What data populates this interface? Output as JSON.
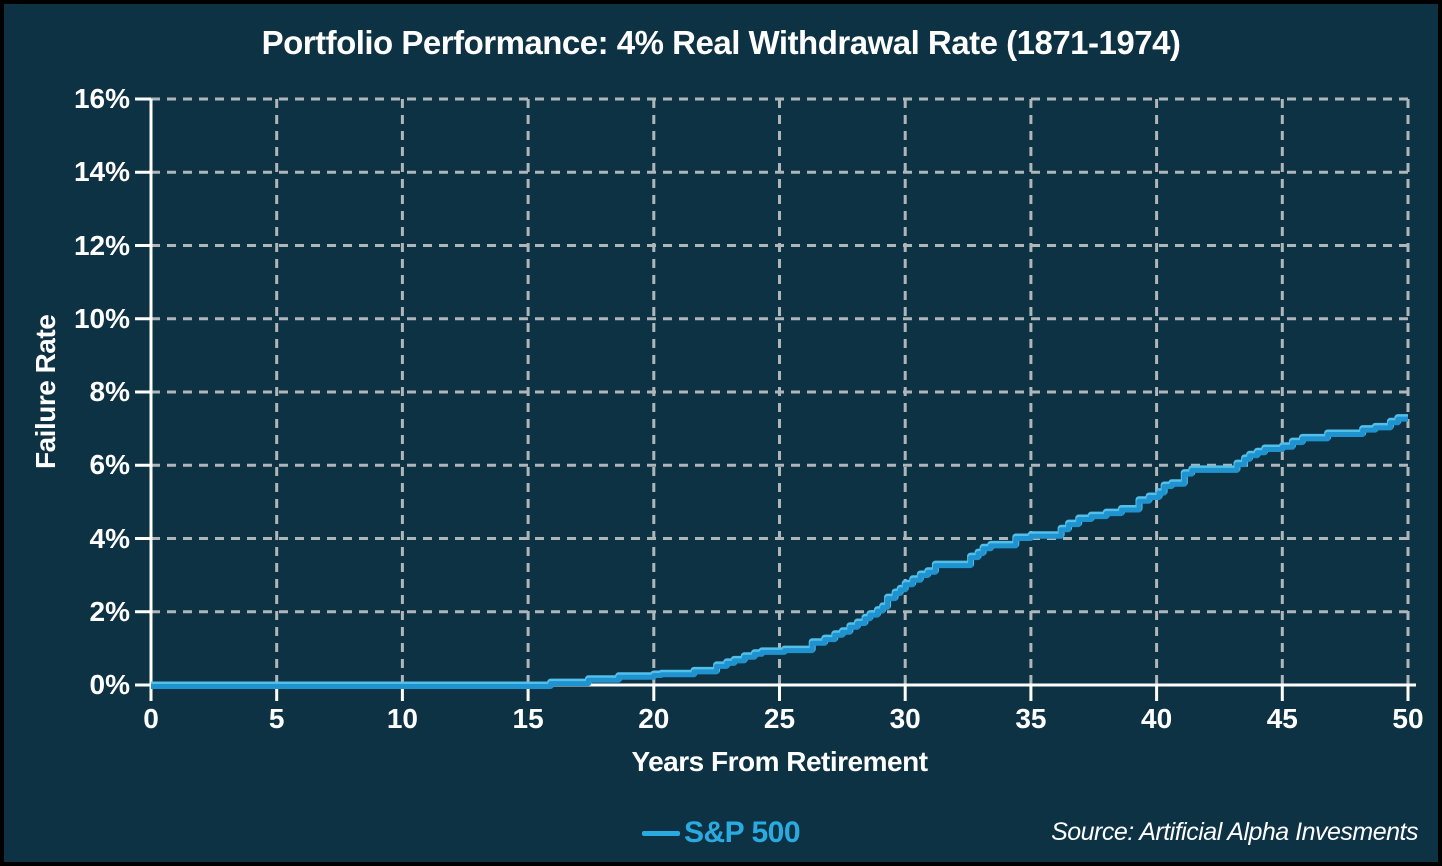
{
  "title": "Portfolio Performance: 4% Real Withdrawal Rate (1871-1974)",
  "axes": {
    "x_label": "Years From Retirement",
    "y_label": "Failure Rate"
  },
  "legend": {
    "label": "S&P 500"
  },
  "source_note": "Source: Artificial Alpha Invesments",
  "colors": {
    "background": "#0d3244",
    "frame_border": "#000000",
    "axis_line": "#ffffff",
    "gridline": "#aeb6ba",
    "text": "#ffffff",
    "series_line": "#1e93d0",
    "series_line_highlight": "#54c0ea",
    "legend_text": "#29abe2"
  },
  "chart_data": {
    "type": "line",
    "step": true,
    "title": "Portfolio Performance: 4% Real Withdrawal Rate (1871-1974)",
    "xlabel": "Years From Retirement",
    "ylabel": "Failure Rate",
    "xlim": [
      0,
      50
    ],
    "ylim": [
      0,
      16
    ],
    "x_ticks": [
      0,
      5,
      10,
      15,
      20,
      25,
      30,
      35,
      40,
      45,
      50
    ],
    "y_ticks": [
      0,
      2,
      4,
      6,
      8,
      10,
      12,
      14,
      16
    ],
    "y_tick_suffix": "%",
    "grid": "dashed",
    "legend_position": "bottom-center",
    "series": [
      {
        "name": "S&P 500",
        "color": "#29abe2",
        "points_note": "step function; [years_from_retirement, failure_rate_percent] at each level change",
        "points": [
          [
            0,
            0
          ],
          [
            15.9,
            0.08
          ],
          [
            17.4,
            0.17
          ],
          [
            18.6,
            0.25
          ],
          [
            20,
            0.3
          ],
          [
            20.3,
            0.32
          ],
          [
            21.6,
            0.4
          ],
          [
            22.5,
            0.55
          ],
          [
            22.9,
            0.63
          ],
          [
            23.2,
            0.7
          ],
          [
            23.6,
            0.8
          ],
          [
            24,
            0.88
          ],
          [
            24.3,
            0.93
          ],
          [
            25.2,
            0.98
          ],
          [
            26.3,
            1.18
          ],
          [
            26.8,
            1.28
          ],
          [
            27.2,
            1.4
          ],
          [
            27.5,
            1.48
          ],
          [
            27.8,
            1.62
          ],
          [
            28.1,
            1.72
          ],
          [
            28.4,
            1.85
          ],
          [
            28.6,
            1.95
          ],
          [
            28.9,
            2.06
          ],
          [
            29.1,
            2.16
          ],
          [
            29.3,
            2.4
          ],
          [
            29.6,
            2.54
          ],
          [
            29.8,
            2.64
          ],
          [
            30,
            2.78
          ],
          [
            30.3,
            2.9
          ],
          [
            30.6,
            3.03
          ],
          [
            30.9,
            3.12
          ],
          [
            31.2,
            3.3
          ],
          [
            32.6,
            3.52
          ],
          [
            32.9,
            3.63
          ],
          [
            33.1,
            3.76
          ],
          [
            33.4,
            3.84
          ],
          [
            34.4,
            4.04
          ],
          [
            35,
            4.1
          ],
          [
            36.2,
            4.28
          ],
          [
            36.5,
            4.42
          ],
          [
            36.9,
            4.56
          ],
          [
            37.4,
            4.64
          ],
          [
            38,
            4.72
          ],
          [
            38.6,
            4.82
          ],
          [
            39.3,
            5.06
          ],
          [
            39.7,
            5.16
          ],
          [
            40.1,
            5.28
          ],
          [
            40.3,
            5.46
          ],
          [
            40.6,
            5.52
          ],
          [
            41.1,
            5.8
          ],
          [
            41.4,
            5.9
          ],
          [
            43.2,
            6.06
          ],
          [
            43.5,
            6.2
          ],
          [
            43.7,
            6.3
          ],
          [
            44,
            6.38
          ],
          [
            44.3,
            6.47
          ],
          [
            45,
            6.53
          ],
          [
            45.4,
            6.66
          ],
          [
            45.8,
            6.76
          ],
          [
            46.8,
            6.88
          ],
          [
            48.2,
            7.0
          ],
          [
            48.7,
            7.06
          ],
          [
            49.3,
            7.2
          ],
          [
            49.6,
            7.3
          ],
          [
            50,
            7.3
          ]
        ]
      }
    ]
  }
}
